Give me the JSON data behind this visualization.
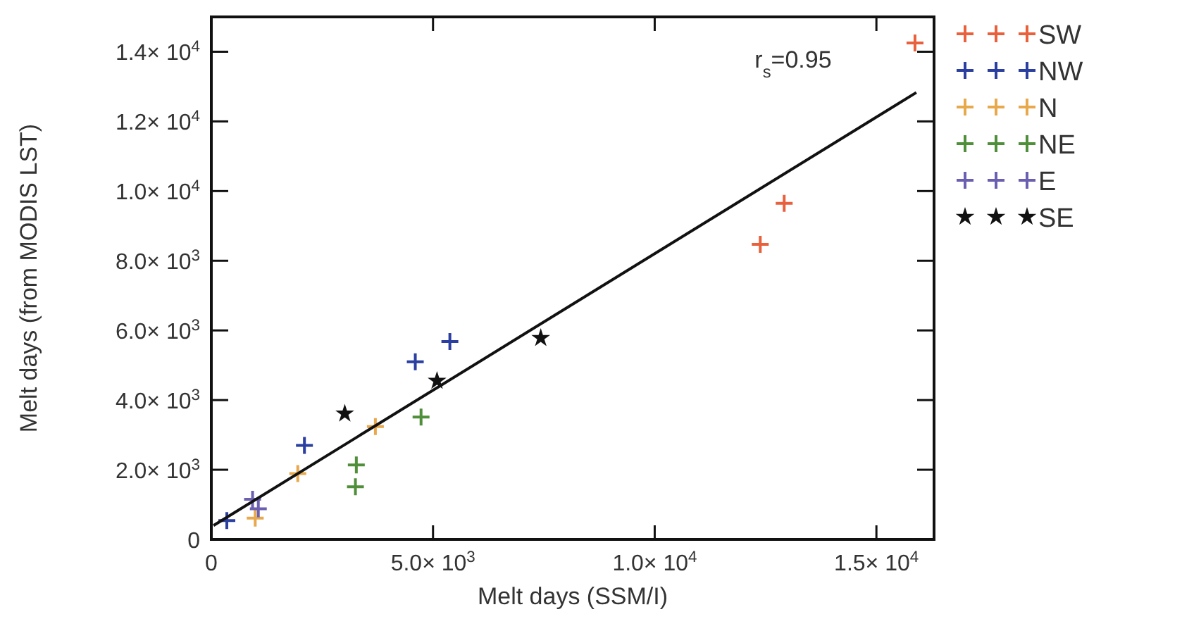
{
  "chart_data": {
    "type": "scatter",
    "xlabel": "Melt days (SSM/I)",
    "ylabel": "Melt days (from MODIS LST)",
    "annotations": [
      "r$_{s}$=0.95"
    ],
    "xlim": [
      0,
      16300
    ],
    "ylim": [
      0,
      15000
    ],
    "xticks": [
      0,
      {
        "value": 5000,
        "label": "5.0× 10$^{3}$"
      },
      {
        "value": 10000,
        "label": "1.0× 10$^{4}$"
      },
      {
        "value": 15000,
        "label": "1.5× 10$^{4}$"
      }
    ],
    "yticks": [
      0,
      {
        "value": 2000,
        "label": "2.0× 10$^{3}$"
      },
      {
        "value": 4000,
        "label": "4.0× 10$^{3}$"
      },
      {
        "value": 6000,
        "label": "6.0× 10$^{3}$"
      },
      {
        "value": 8000,
        "label": "8.0× 10$^{3}$"
      },
      {
        "value": 10000,
        "label": "1.0× 10$^{4}$"
      },
      {
        "value": 12000,
        "label": "1.2× 10$^{4}$"
      },
      {
        "value": 14000,
        "label": "1.4× 10$^{4}$"
      }
    ],
    "legend": "top right",
    "series": [
      {
        "name": "SW",
        "color": "#e8603c",
        "marker": "cross",
        "x": [
          12380,
          12920,
          15870
        ],
        "values": [
          8470,
          9650,
          14250
        ]
      },
      {
        "name": "NW",
        "color": "#2a3fa0",
        "marker": "cross",
        "x": [
          350,
          2100,
          4600,
          5380
        ],
        "values": [
          540,
          2700,
          5100,
          5680
        ]
      },
      {
        "name": "N",
        "color": "#e8a84c",
        "marker": "cross",
        "x": [
          990,
          1950,
          3700
        ],
        "values": [
          610,
          1890,
          3240
        ]
      },
      {
        "name": "NE",
        "color": "#4f8f3a",
        "marker": "cross",
        "x": [
          3250,
          3270,
          4730
        ],
        "values": [
          1510,
          2140,
          3510
        ]
      },
      {
        "name": "E",
        "color": "#6a5fb0",
        "marker": "cross",
        "x": [
          930,
          1060
        ],
        "values": [
          1150,
          880
        ]
      },
      {
        "name": "SE",
        "color": "#111111",
        "marker": "star",
        "x": [
          3010,
          5090,
          7430
        ],
        "values": [
          3610,
          4550,
          5780
        ]
      },
      {
        "type": "line",
        "color": "#111111",
        "line_style": "solid",
        "marker": "none",
        "x": [
          50,
          15900
        ],
        "values": [
          400,
          12830
        ]
      }
    ]
  }
}
